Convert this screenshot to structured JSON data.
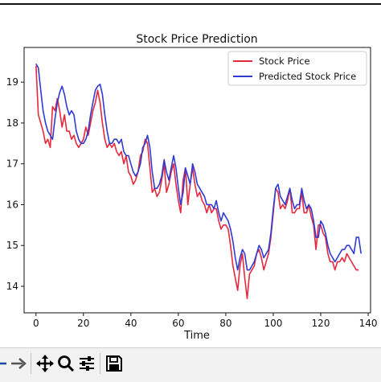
{
  "chart_data": {
    "type": "line",
    "title": "Stock Price Prediction",
    "xlabel": "Time",
    "ylabel": "",
    "xlim": [
      -5,
      141
    ],
    "ylim": [
      13.35,
      19.85
    ],
    "xticks": [
      0,
      20,
      40,
      60,
      80,
      100,
      120,
      140
    ],
    "yticks": [
      14,
      15,
      16,
      17,
      18,
      19
    ],
    "grid": false,
    "legend_position": "upper-right",
    "series": [
      {
        "name": "Stock Price",
        "color": "#e8283c",
        "x": [
          0,
          1,
          2,
          3,
          4,
          5,
          6,
          7,
          8,
          9,
          10,
          11,
          12,
          13,
          14,
          15,
          16,
          17,
          18,
          19,
          20,
          21,
          22,
          23,
          24,
          25,
          26,
          27,
          28,
          29,
          30,
          31,
          32,
          33,
          34,
          35,
          36,
          37,
          38,
          39,
          40,
          41,
          42,
          43,
          44,
          45,
          46,
          47,
          48,
          49,
          50,
          51,
          52,
          53,
          54,
          55,
          56,
          57,
          58,
          59,
          60,
          61,
          62,
          63,
          64,
          65,
          66,
          67,
          68,
          69,
          70,
          71,
          72,
          73,
          74,
          75,
          76,
          77,
          78,
          79,
          80,
          81,
          82,
          83,
          84,
          85,
          86,
          87,
          88,
          89,
          90,
          91,
          92,
          93,
          94,
          95,
          96,
          97,
          98,
          99,
          100,
          101,
          102,
          103,
          104,
          105,
          106,
          107,
          108,
          109,
          110,
          111,
          112,
          113,
          114,
          115,
          116,
          117,
          118,
          119,
          120,
          121,
          122,
          123,
          124,
          125,
          126,
          127,
          128,
          129,
          130,
          131,
          132,
          133,
          134,
          135,
          136
        ],
        "values": [
          19.4,
          18.2,
          18.0,
          17.8,
          17.5,
          17.6,
          17.4,
          18.4,
          18.3,
          18.6,
          18.3,
          17.9,
          18.2,
          17.8,
          17.8,
          17.6,
          17.7,
          17.5,
          17.4,
          17.5,
          17.6,
          17.9,
          17.7,
          18.0,
          18.3,
          18.5,
          18.8,
          18.5,
          18.0,
          17.6,
          17.4,
          17.5,
          17.4,
          17.5,
          17.3,
          17.2,
          17.3,
          17.0,
          17.2,
          16.8,
          16.7,
          16.5,
          16.6,
          16.8,
          17.2,
          17.3,
          17.6,
          17.5,
          16.9,
          16.3,
          16.4,
          16.2,
          16.3,
          16.6,
          17.0,
          16.3,
          16.5,
          16.8,
          17.0,
          16.5,
          16.1,
          15.8,
          16.6,
          16.9,
          16.0,
          16.5,
          16.9,
          16.5,
          16.2,
          16.3,
          16.1,
          16.0,
          15.8,
          16.0,
          15.8,
          15.9,
          15.9,
          15.6,
          15.4,
          15.5,
          15.5,
          15.4,
          15.0,
          14.5,
          14.2,
          13.9,
          14.5,
          14.8,
          14.2,
          13.7,
          14.3,
          14.4,
          14.5,
          14.8,
          14.9,
          14.7,
          14.4,
          14.6,
          14.8,
          15.2,
          15.8,
          16.4,
          16.3,
          15.9,
          16.0,
          15.9,
          16.1,
          16.4,
          15.8,
          15.8,
          15.9,
          15.9,
          16.3,
          15.8,
          15.8,
          16.0,
          15.7,
          15.5,
          14.9,
          15.5,
          15.5,
          15.3,
          15.2,
          14.8,
          14.6,
          14.6,
          14.4,
          14.6,
          14.6,
          14.7,
          14.6,
          14.8,
          14.7,
          14.6,
          14.5,
          14.4,
          14.4
        ]
      },
      {
        "name": "Predicted Stock Price",
        "color": "#2f3bd4",
        "x": [
          0,
          1,
          2,
          3,
          4,
          5,
          6,
          7,
          8,
          9,
          10,
          11,
          12,
          13,
          14,
          15,
          16,
          17,
          18,
          19,
          20,
          21,
          22,
          23,
          24,
          25,
          26,
          27,
          28,
          29,
          30,
          31,
          32,
          33,
          34,
          35,
          36,
          37,
          38,
          39,
          40,
          41,
          42,
          43,
          44,
          45,
          46,
          47,
          48,
          49,
          50,
          51,
          52,
          53,
          54,
          55,
          56,
          57,
          58,
          59,
          60,
          61,
          62,
          63,
          64,
          65,
          66,
          67,
          68,
          69,
          70,
          71,
          72,
          73,
          74,
          75,
          76,
          77,
          78,
          79,
          80,
          81,
          82,
          83,
          84,
          85,
          86,
          87,
          88,
          89,
          90,
          91,
          92,
          93,
          94,
          95,
          96,
          97,
          98,
          99,
          100,
          101,
          102,
          103,
          104,
          105,
          106,
          107,
          108,
          109,
          110,
          111,
          112,
          113,
          114,
          115,
          116,
          117,
          118,
          119,
          120,
          121,
          122,
          123,
          124,
          125,
          126,
          127,
          128,
          129,
          130,
          131,
          132,
          133,
          134,
          135,
          136,
          137
        ],
        "values": [
          19.45,
          19.35,
          18.8,
          18.3,
          18.0,
          17.8,
          17.7,
          17.6,
          18.1,
          18.5,
          18.75,
          18.9,
          18.7,
          18.4,
          18.2,
          18.3,
          18.2,
          17.8,
          17.6,
          17.5,
          17.5,
          17.6,
          17.8,
          18.2,
          18.5,
          18.8,
          18.9,
          18.95,
          18.7,
          18.2,
          17.8,
          17.5,
          17.5,
          17.6,
          17.6,
          17.5,
          17.6,
          17.3,
          17.2,
          17.2,
          17.0,
          16.8,
          16.7,
          16.8,
          17.0,
          17.4,
          17.5,
          17.7,
          17.4,
          16.8,
          16.4,
          16.4,
          16.5,
          16.7,
          17.1,
          16.8,
          16.6,
          16.9,
          17.2,
          16.9,
          16.4,
          16.0,
          16.3,
          16.9,
          16.7,
          16.5,
          17.0,
          16.8,
          16.5,
          16.4,
          16.3,
          16.2,
          16.0,
          16.0,
          16.0,
          15.9,
          16.1,
          15.8,
          15.6,
          15.8,
          15.7,
          15.6,
          15.4,
          15.1,
          14.7,
          14.4,
          14.7,
          14.9,
          14.8,
          14.4,
          14.4,
          14.5,
          14.6,
          14.8,
          15.0,
          14.9,
          14.7,
          14.8,
          14.9,
          15.3,
          15.9,
          16.4,
          16.5,
          16.2,
          16.1,
          16.0,
          16.2,
          16.4,
          16.1,
          15.9,
          16.0,
          16.0,
          16.4,
          16.1,
          15.9,
          16.0,
          15.9,
          15.6,
          15.2,
          15.2,
          15.6,
          15.5,
          15.3,
          15.0,
          14.8,
          14.7,
          14.6,
          14.7,
          14.8,
          14.9,
          14.9,
          15.0,
          15.0,
          14.9,
          14.8,
          15.2,
          15.2,
          14.8
        ]
      }
    ]
  }
}
